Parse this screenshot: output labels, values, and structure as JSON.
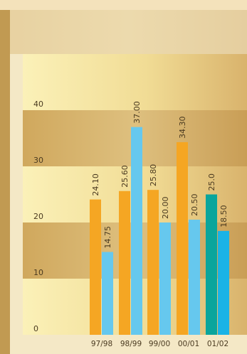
{
  "chart_data": {
    "type": "bar",
    "categories": [
      "97/98",
      "98/99",
      "99/00",
      "00/01",
      "01/02"
    ],
    "series": [
      {
        "values": [
          24.1,
          25.6,
          25.8,
          34.3,
          25.0
        ],
        "value_labels": [
          "24.10",
          "25.60",
          "25.80",
          "34.30",
          "25.0"
        ],
        "colors": [
          "#f5a623",
          "#f5a623",
          "#f5a623",
          "#f5a623",
          "#0aa59c"
        ]
      },
      {
        "values": [
          14.75,
          37.0,
          20.0,
          20.5,
          18.5
        ],
        "value_labels": [
          "14.75",
          "37.00",
          "20.00",
          "20.50",
          "18.50"
        ],
        "colors": [
          "#66c8ee",
          "#66c8ee",
          "#66c8ee",
          "#66c8ee",
          "#1ab3e6"
        ]
      }
    ],
    "y_ticks": [
      {
        "value": 0,
        "label": "0"
      },
      {
        "value": 10,
        "label": "10"
      },
      {
        "value": 20,
        "label": "20"
      },
      {
        "value": 30,
        "label": "30"
      },
      {
        "value": 40,
        "label": "40"
      }
    ],
    "ylim": [
      0,
      50
    ],
    "grid": "alternating horizontal bands",
    "legend": "none",
    "colors": {
      "band_light": "#fbf1b8",
      "band_dark": "#d9b36c",
      "left_strip": "#c19a52",
      "top_strip": "#f4e2bb"
    }
  }
}
